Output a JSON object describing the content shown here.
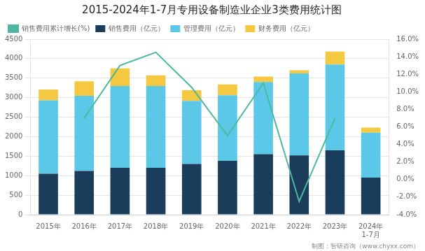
{
  "chart_data": {
    "type": "bar",
    "title": "2015-2024年1-7月专用设备制造业企业3类费用统计图",
    "categories": [
      "2015年",
      "2016年",
      "2017年",
      "2018年",
      "2019年",
      "2020年",
      "2021年",
      "2022年",
      "2023年",
      "2024年\n1-7月"
    ],
    "series": [
      {
        "name": "销售费用（亿元）",
        "type": "bar",
        "color": "#1a3d5c",
        "values": [
          1050,
          1120,
          1200,
          1200,
          1300,
          1380,
          1550,
          1520,
          1650,
          950
        ]
      },
      {
        "name": "管理费用（亿元）",
        "type": "bar",
        "color": "#5bc8e8",
        "values": [
          1880,
          1930,
          2100,
          2100,
          1620,
          1680,
          1850,
          2100,
          2200,
          1150
        ]
      },
      {
        "name": "财务费用（亿元）",
        "type": "bar",
        "color": "#f5c842",
        "values": [
          280,
          370,
          450,
          270,
          270,
          280,
          140,
          80,
          330,
          130
        ]
      },
      {
        "name": "销售费用累计增长(%)",
        "type": "line",
        "axis": "y2",
        "color": "#4db89e",
        "values": [
          null,
          7.0,
          13.0,
          14.5,
          10.5,
          5.0,
          11.0,
          -2.5,
          7.0,
          null
        ]
      }
    ],
    "stacked": true,
    "ylim": [
      0,
      4500
    ],
    "yticks": [
      0,
      500,
      1000,
      1500,
      2000,
      2500,
      3000,
      3500,
      4000,
      4500
    ],
    "y2lim": [
      -4.0,
      16.0
    ],
    "y2ticks": [
      {
        "value": -4.0,
        "label": "-4.0%"
      },
      {
        "value": -2.0,
        "label": "-2.0%"
      },
      {
        "value": 0.0,
        "label": "0.0%"
      },
      {
        "value": 2.0,
        "label": "2.0%"
      },
      {
        "value": 4.0,
        "label": "4.0%"
      },
      {
        "value": 6.0,
        "label": "6.0%"
      },
      {
        "value": 8.0,
        "label": "8.0%"
      },
      {
        "value": 10.0,
        "label": "10.0%"
      },
      {
        "value": 12.0,
        "label": "12.0%"
      },
      {
        "value": 14.0,
        "label": "14.0%"
      },
      {
        "value": 16.0,
        "label": "16.0%"
      }
    ],
    "grid": true,
    "legend": "upper left",
    "annotations": [
      "制图：智研咨询（www.chyxx.com）"
    ]
  }
}
